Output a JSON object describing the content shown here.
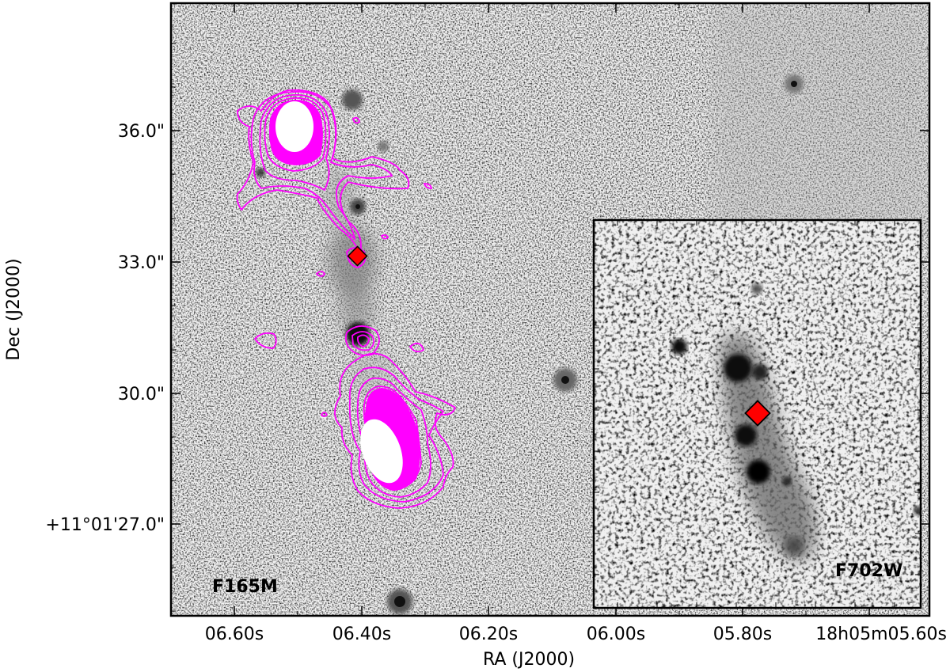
{
  "figure": {
    "x_axis_title": "RA (J2000)",
    "y_axis_title": "Dec (J2000)",
    "x_tick_labels": [
      "06.60s",
      "06.40s",
      "06.20s",
      "06.00s",
      "05.80s",
      "18h05m05.60s"
    ],
    "y_tick_labels": [
      "36.0\"",
      "33.0\"",
      "30.0\"",
      "+11°01'27.0\""
    ]
  },
  "main_panel": {
    "band_label": "F165M",
    "contour_color": "#ff00ff",
    "marker_color": "#ff0000"
  },
  "inset_panel": {
    "band_label": "F702W",
    "marker_color": "#ff0000"
  }
}
